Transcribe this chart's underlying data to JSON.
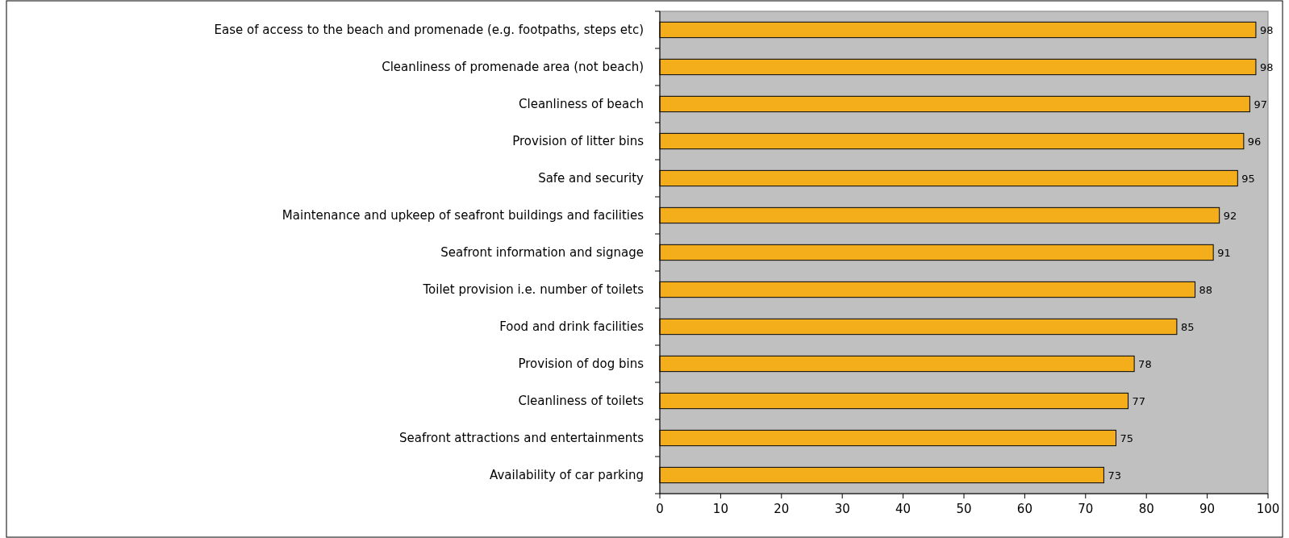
{
  "chart_data": {
    "type": "bar",
    "orientation": "horizontal",
    "categories": [
      "Ease of access to the beach and promenade (e.g. footpaths, steps etc)",
      "Cleanliness of promenade area (not beach)",
      "Cleanliness of beach",
      "Provision of litter bins",
      "Safe and security",
      "Maintenance and upkeep of seafront buildings and facilities",
      "Seafront information and signage",
      "Toilet provision i.e. number of toilets",
      "Food and drink facilities",
      "Provision of dog bins",
      "Cleanliness of toilets",
      "Seafront attractions and entertainments",
      "Availability of car parking"
    ],
    "values": [
      98,
      98,
      97,
      96,
      95,
      92,
      91,
      88,
      85,
      78,
      77,
      75,
      73
    ],
    "color": "#f5ae1b",
    "xlim": [
      0,
      100
    ],
    "xticks": [
      0,
      10,
      20,
      30,
      40,
      50,
      60,
      70,
      80,
      90,
      100
    ],
    "data_labels": true
  }
}
